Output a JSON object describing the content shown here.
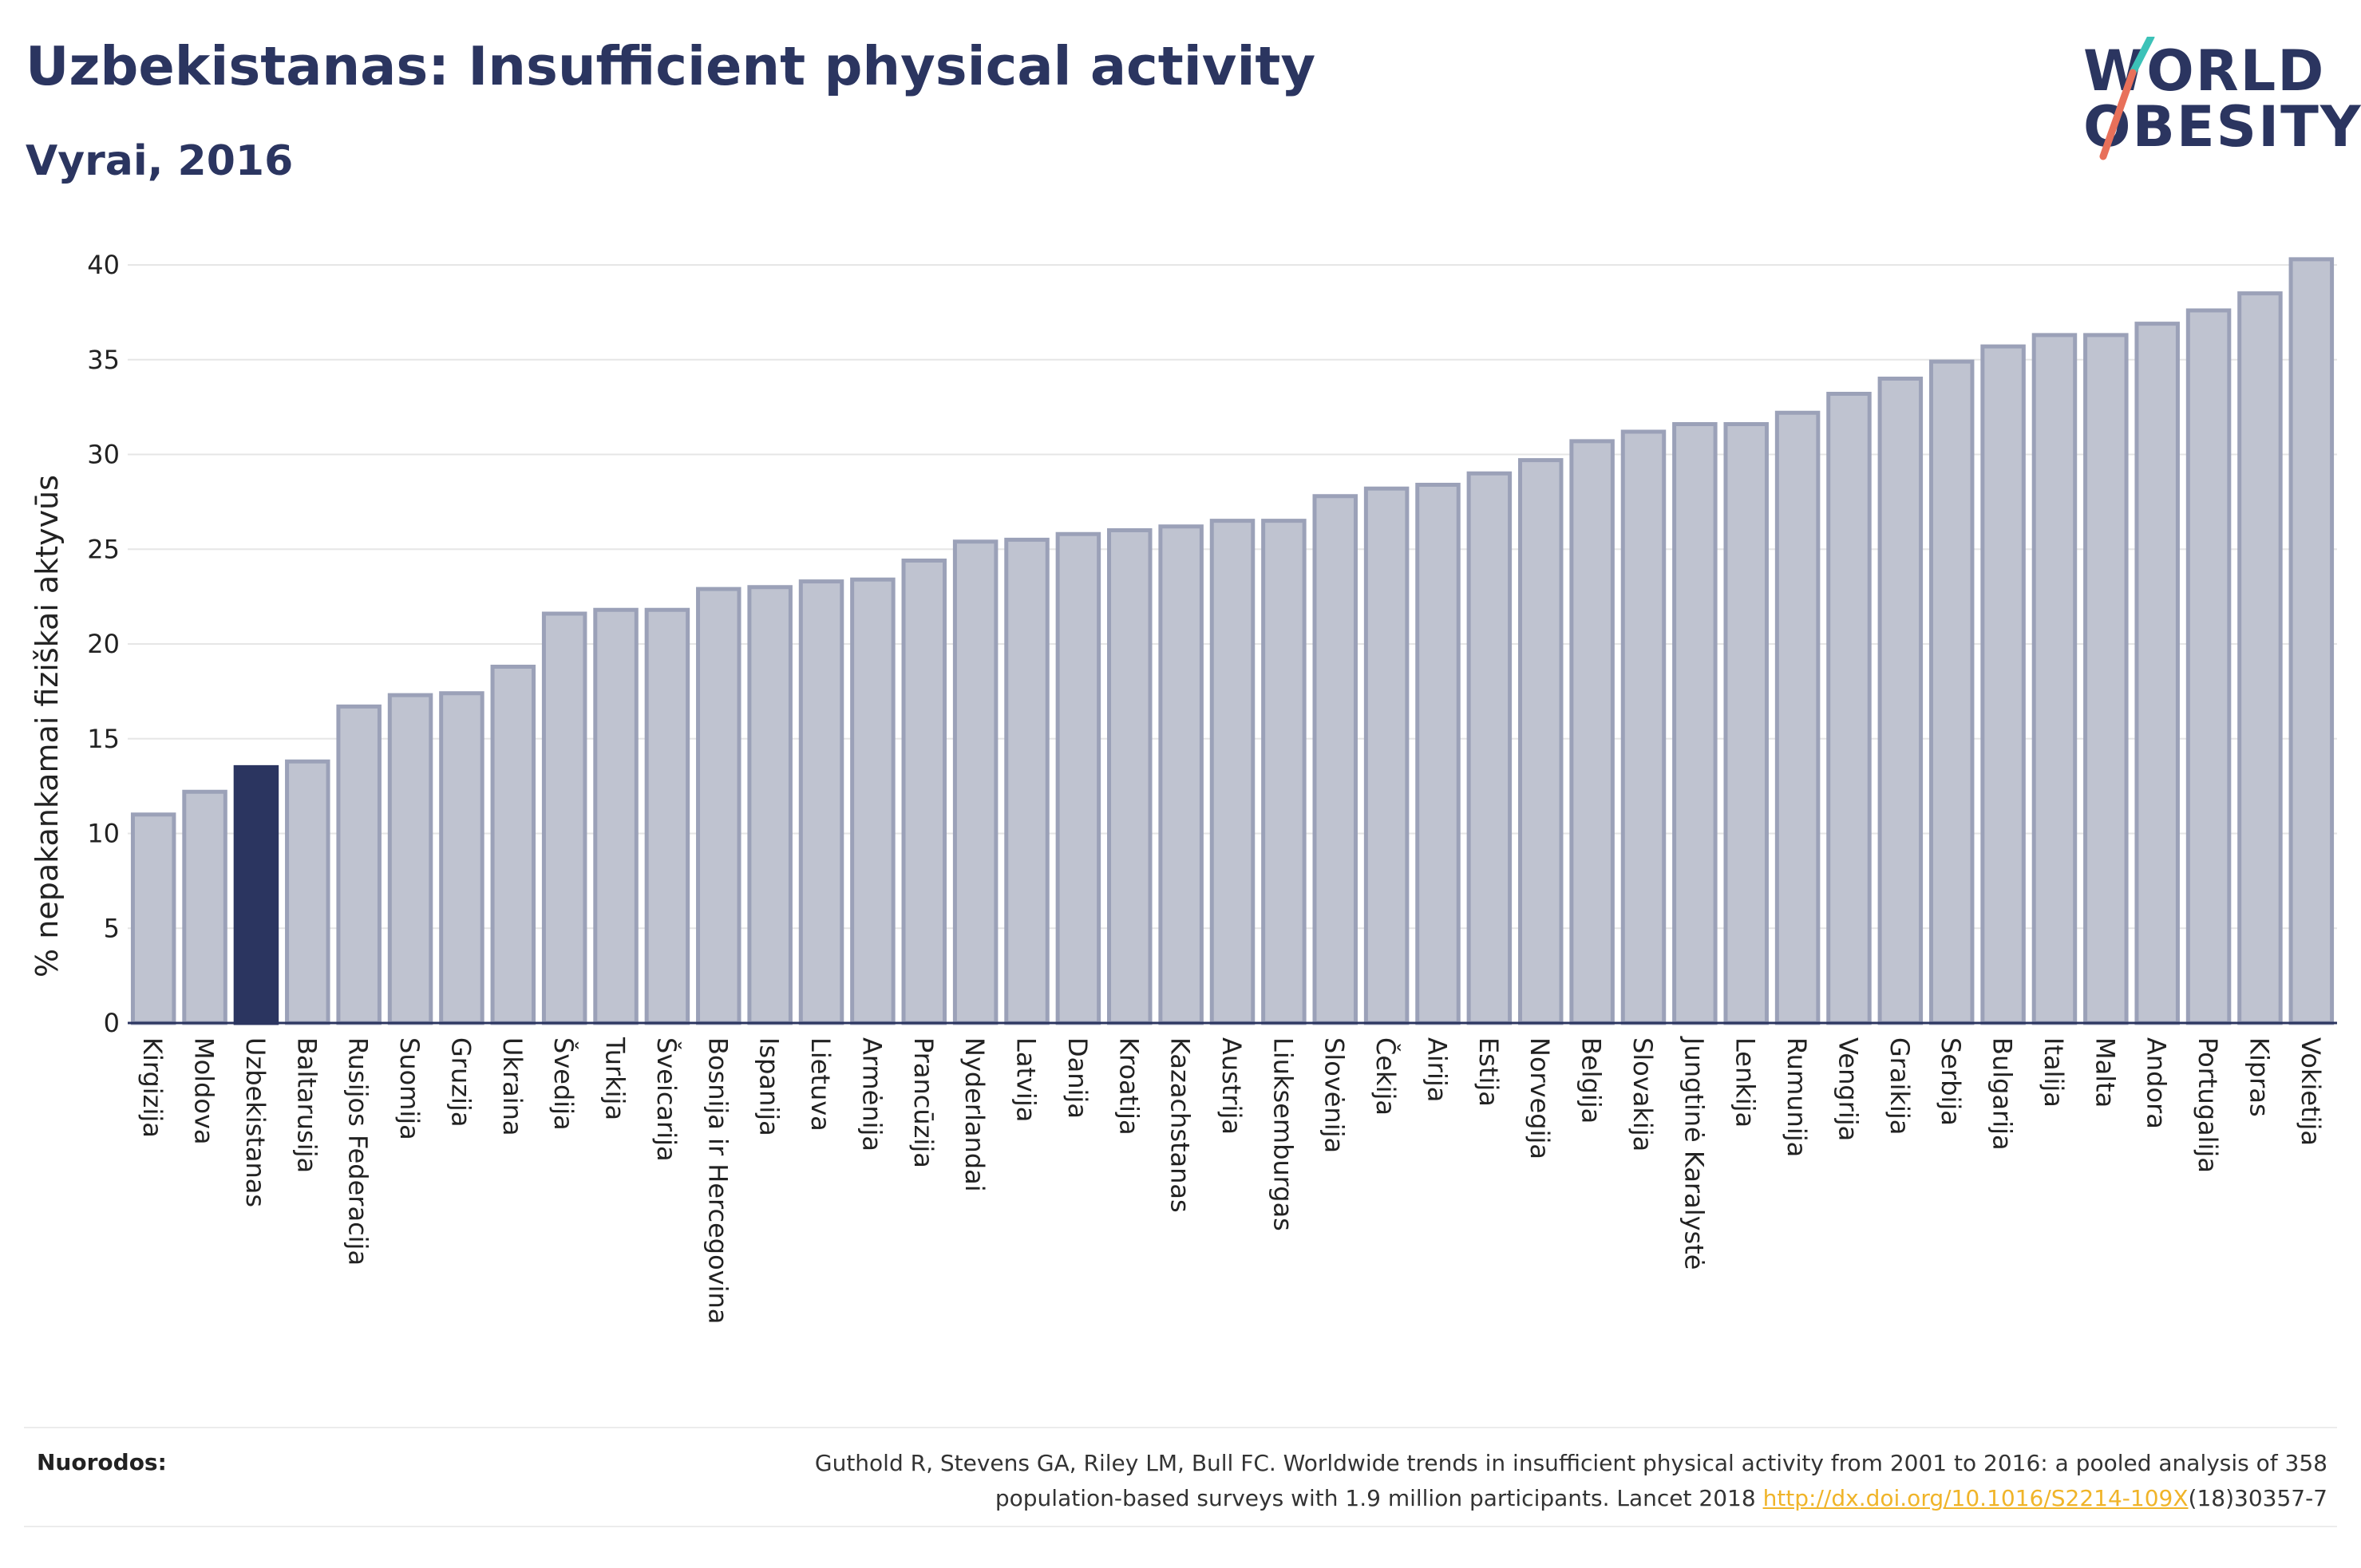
{
  "header": {
    "title": "Uzbekistanas: Insufficient physical activity",
    "subtitle": "Vyrai, 2016"
  },
  "logo": {
    "line1": "WORLD",
    "line2": "OBESITY",
    "slash_color": "#e8705a",
    "slash_color_top": "#3cc2b8"
  },
  "colors": {
    "bar": "#bfc3d0",
    "bar_border": "#9ba1b8",
    "highlight": "#2b3560",
    "title": "#2b3560",
    "link": "#f0b429"
  },
  "chart_data": {
    "type": "bar",
    "ylabel": "% nepakankamai fiziškai aktyvūs",
    "ylim": [
      0,
      42
    ],
    "yticks": [
      0,
      5,
      10,
      15,
      20,
      25,
      30,
      35,
      40
    ],
    "grid": true,
    "highlight": "Uzbekistanas",
    "categories": [
      "Kirgizija",
      "Moldova",
      "Uzbekistanas",
      "Baltarusija",
      "Rusijos Federacija",
      "Suomija",
      "Gruzija",
      "Ukraina",
      "Švedija",
      "Turkija",
      "Šveicarija",
      "Bosnija ir Hercegovina",
      "Ispanija",
      "Lietuva",
      "Armėnija",
      "Prancūzija",
      "Nyderlandai",
      "Latvija",
      "Danija",
      "Kroatija",
      "Kazachstanas",
      "Austrija",
      "Liuksemburgas",
      "Slovėnija",
      "Čekija",
      "Airija",
      "Estija",
      "Norvegija",
      "Belgija",
      "Slovakija",
      "Jungtinė Karalystė",
      "Lenkija",
      "Rumunija",
      "Vengrija",
      "Graikija",
      "Serbija",
      "Bulgarija",
      "Italija",
      "Malta",
      "Andora",
      "Portugalija",
      "Kipras",
      "Vokietija"
    ],
    "values": [
      11.0,
      12.2,
      13.5,
      13.8,
      16.7,
      17.3,
      17.4,
      18.8,
      21.6,
      21.8,
      21.8,
      22.9,
      23.0,
      23.3,
      23.4,
      24.4,
      25.4,
      25.5,
      25.8,
      26.0,
      26.2,
      26.5,
      26.5,
      27.8,
      28.2,
      28.4,
      29.0,
      29.7,
      30.7,
      31.2,
      31.6,
      31.6,
      32.2,
      33.2,
      34.0,
      34.9,
      35.7,
      36.3,
      36.3,
      36.9,
      37.6,
      38.5,
      40.3
    ]
  },
  "footer": {
    "label": "Nuorodos:",
    "text_line1": "Guthold R, Stevens GA, Riley LM, Bull FC. Worldwide trends in insufficient physical activity from 2001 to 2016: a pooled analysis of 358",
    "text_line2_pre": "population-based surveys with 1.9 million participants. Lancet 2018 ",
    "link": "http://dx.doi.org/10.1016/S2214-109X",
    "text_line2_post": "(18)30357-7"
  }
}
